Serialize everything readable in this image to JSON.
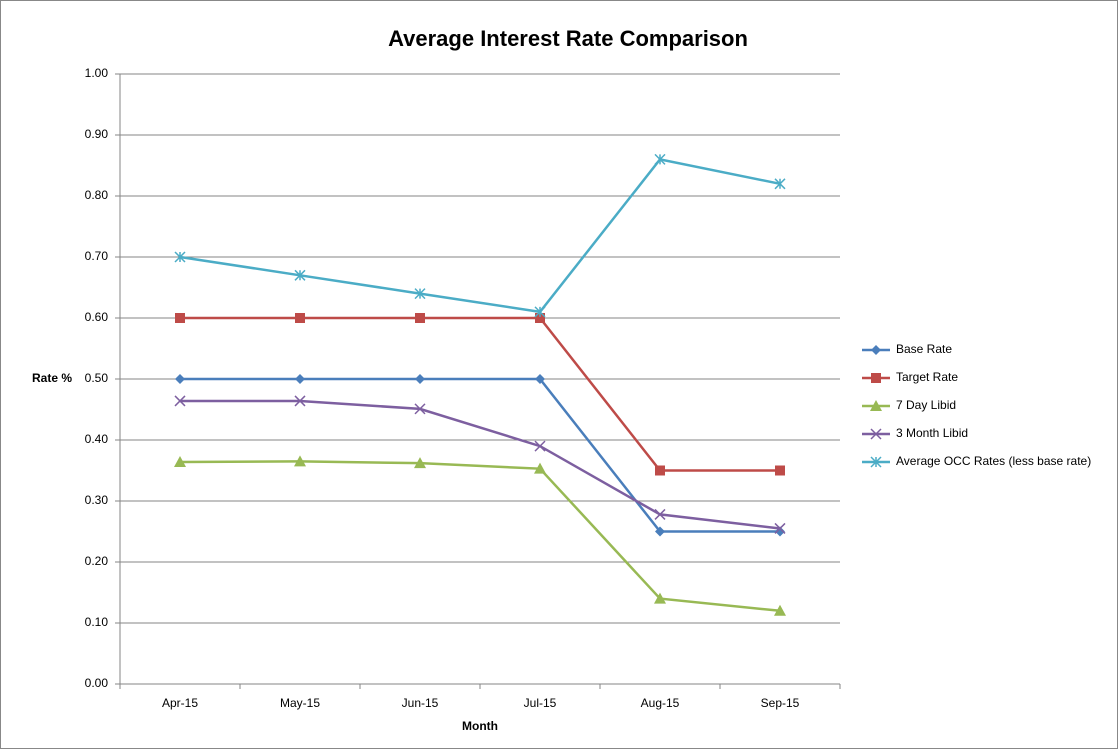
{
  "chart_data": {
    "type": "line",
    "title": "Average Interest Rate Comparison",
    "x_label": "Month",
    "y_label": "Rate %",
    "categories": [
      "Apr-15",
      "May-15",
      "Jun-15",
      "Jul-15",
      "Aug-15",
      "Sep-15"
    ],
    "ylim": [
      0,
      1
    ],
    "yticks": [
      {
        "value": 0,
        "label": "0.00"
      },
      {
        "value": 0.1,
        "label": "0.10"
      },
      {
        "value": 0.2,
        "label": "0.20"
      },
      {
        "value": 0.3,
        "label": "0.30"
      },
      {
        "value": 0.4,
        "label": "0.40"
      },
      {
        "value": 0.5,
        "label": "0.50"
      },
      {
        "value": 0.6,
        "label": "0.60"
      },
      {
        "value": 0.7,
        "label": "0.70"
      },
      {
        "value": 0.8,
        "label": "0.80"
      },
      {
        "value": 0.9,
        "label": "0.90"
      },
      {
        "value": 1,
        "label": "1.00"
      }
    ],
    "grid": true,
    "legend": "right",
    "series": [
      {
        "name": "Base Rate",
        "color": "#4a7ebb",
        "marker": "diamond",
        "values": [
          0.5,
          0.5,
          0.5,
          0.5,
          0.25,
          0.25
        ]
      },
      {
        "name": "Target Rate",
        "color": "#be4b48",
        "marker": "square",
        "values": [
          0.6,
          0.6,
          0.6,
          0.6,
          0.35,
          0.35
        ]
      },
      {
        "name": "7 Day Libid",
        "color": "#98b954",
        "marker": "triangle",
        "values": [
          0.364,
          0.365,
          0.362,
          0.353,
          0.14,
          0.12
        ]
      },
      {
        "name": "3 Month Libid",
        "color": "#7d5fa0",
        "marker": "x",
        "values": [
          0.464,
          0.464,
          0.451,
          0.39,
          0.278,
          0.255
        ]
      },
      {
        "name": "Average OCC Rates (less base rate)",
        "color": "#4bacc6",
        "marker": "asterisk",
        "values": [
          0.7,
          0.67,
          0.64,
          0.61,
          0.86,
          0.82
        ]
      }
    ]
  }
}
